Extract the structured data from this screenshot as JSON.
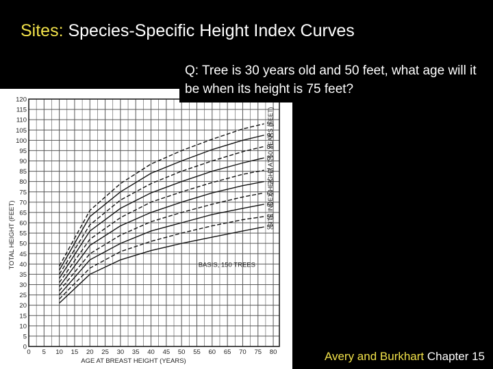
{
  "slide": {
    "title_prefix": "Sites:",
    "title_rest": " Species-Specific Height Index Curves",
    "question": "Q: Tree is 30 years old and 50 feet, what age will it be when its height is 75 feet?",
    "footer_authors": "Avery and Burkhart",
    "footer_rest": " Chapter 15"
  },
  "colors": {
    "highlight": "#f2e24a",
    "text": "#ffffff",
    "background": "#000000"
  },
  "chart_data": {
    "type": "line",
    "xlabel": "AGE AT BREAST HEIGHT (YEARS)",
    "ylabel": "TOTAL HEIGHT (FEET)",
    "right_label": "SITE INDEX HEIGHT AT 50 YEARS (FEET)",
    "annotation": "BASIS, 150 TREES",
    "xlim": [
      0,
      82
    ],
    "ylim": [
      0,
      120
    ],
    "xticks": [
      0,
      5,
      10,
      15,
      20,
      25,
      30,
      35,
      40,
      45,
      50,
      55,
      60,
      65,
      70,
      75,
      80
    ],
    "yticks": [
      0,
      5,
      10,
      15,
      20,
      25,
      30,
      35,
      40,
      45,
      50,
      55,
      60,
      65,
      70,
      75,
      80,
      85,
      90,
      95,
      100,
      105,
      110,
      115,
      120
    ],
    "grid": true,
    "x_start": 10,
    "x_end": 77,
    "series": [
      {
        "name": "50",
        "dashed": false,
        "values": [
          [
            10,
            21
          ],
          [
            20,
            35
          ],
          [
            30,
            42
          ],
          [
            40,
            46.5
          ],
          [
            50,
            50
          ],
          [
            60,
            53
          ],
          [
            70,
            56
          ],
          [
            77,
            58
          ]
        ]
      },
      {
        "name": "55",
        "dashed": true,
        "values": [
          [
            10,
            23
          ],
          [
            20,
            38
          ],
          [
            30,
            46
          ],
          [
            40,
            51
          ],
          [
            50,
            55
          ],
          [
            60,
            58.5
          ],
          [
            70,
            61.5
          ],
          [
            77,
            63
          ]
        ]
      },
      {
        "name": "60",
        "dashed": false,
        "values": [
          [
            10,
            25
          ],
          [
            20,
            42
          ],
          [
            30,
            50
          ],
          [
            40,
            56
          ],
          [
            50,
            60
          ],
          [
            60,
            64
          ],
          [
            70,
            67
          ],
          [
            77,
            69
          ]
        ]
      },
      {
        "name": "65",
        "dashed": true,
        "values": [
          [
            10,
            27
          ],
          [
            20,
            45
          ],
          [
            30,
            54
          ],
          [
            40,
            60.5
          ],
          [
            50,
            65
          ],
          [
            60,
            69
          ],
          [
            70,
            72.5
          ],
          [
            77,
            74.5
          ]
        ]
      },
      {
        "name": "70",
        "dashed": false,
        "values": [
          [
            10,
            29
          ],
          [
            20,
            49
          ],
          [
            30,
            58.5
          ],
          [
            40,
            65
          ],
          [
            50,
            70
          ],
          [
            60,
            74.5
          ],
          [
            70,
            78
          ],
          [
            77,
            80
          ]
        ]
      },
      {
        "name": "75",
        "dashed": true,
        "values": [
          [
            10,
            31
          ],
          [
            20,
            52
          ],
          [
            30,
            62.5
          ],
          [
            40,
            70
          ],
          [
            50,
            75
          ],
          [
            60,
            79.5
          ],
          [
            70,
            83.5
          ],
          [
            77,
            85.5
          ]
        ]
      },
      {
        "name": "80",
        "dashed": false,
        "values": [
          [
            10,
            33
          ],
          [
            20,
            56
          ],
          [
            30,
            67
          ],
          [
            40,
            74.5
          ],
          [
            50,
            80
          ],
          [
            60,
            85
          ],
          [
            70,
            89
          ],
          [
            77,
            91.5
          ]
        ]
      },
      {
        "name": "85",
        "dashed": true,
        "values": [
          [
            10,
            35
          ],
          [
            20,
            59
          ],
          [
            30,
            71
          ],
          [
            40,
            79
          ],
          [
            50,
            85
          ],
          [
            60,
            90
          ],
          [
            70,
            94.5
          ],
          [
            77,
            97
          ]
        ]
      },
      {
        "name": "90",
        "dashed": false,
        "values": [
          [
            10,
            37
          ],
          [
            20,
            63
          ],
          [
            30,
            75
          ],
          [
            40,
            84
          ],
          [
            50,
            90
          ],
          [
            60,
            95.5
          ],
          [
            70,
            100
          ],
          [
            77,
            102.5
          ]
        ]
      },
      {
        "name": "95",
        "dashed": true,
        "values": [
          [
            10,
            39
          ],
          [
            20,
            66
          ],
          [
            30,
            79
          ],
          [
            40,
            88.5
          ],
          [
            50,
            95
          ],
          [
            60,
            100.5
          ],
          [
            70,
            105.5
          ],
          [
            77,
            108
          ]
        ]
      }
    ]
  }
}
